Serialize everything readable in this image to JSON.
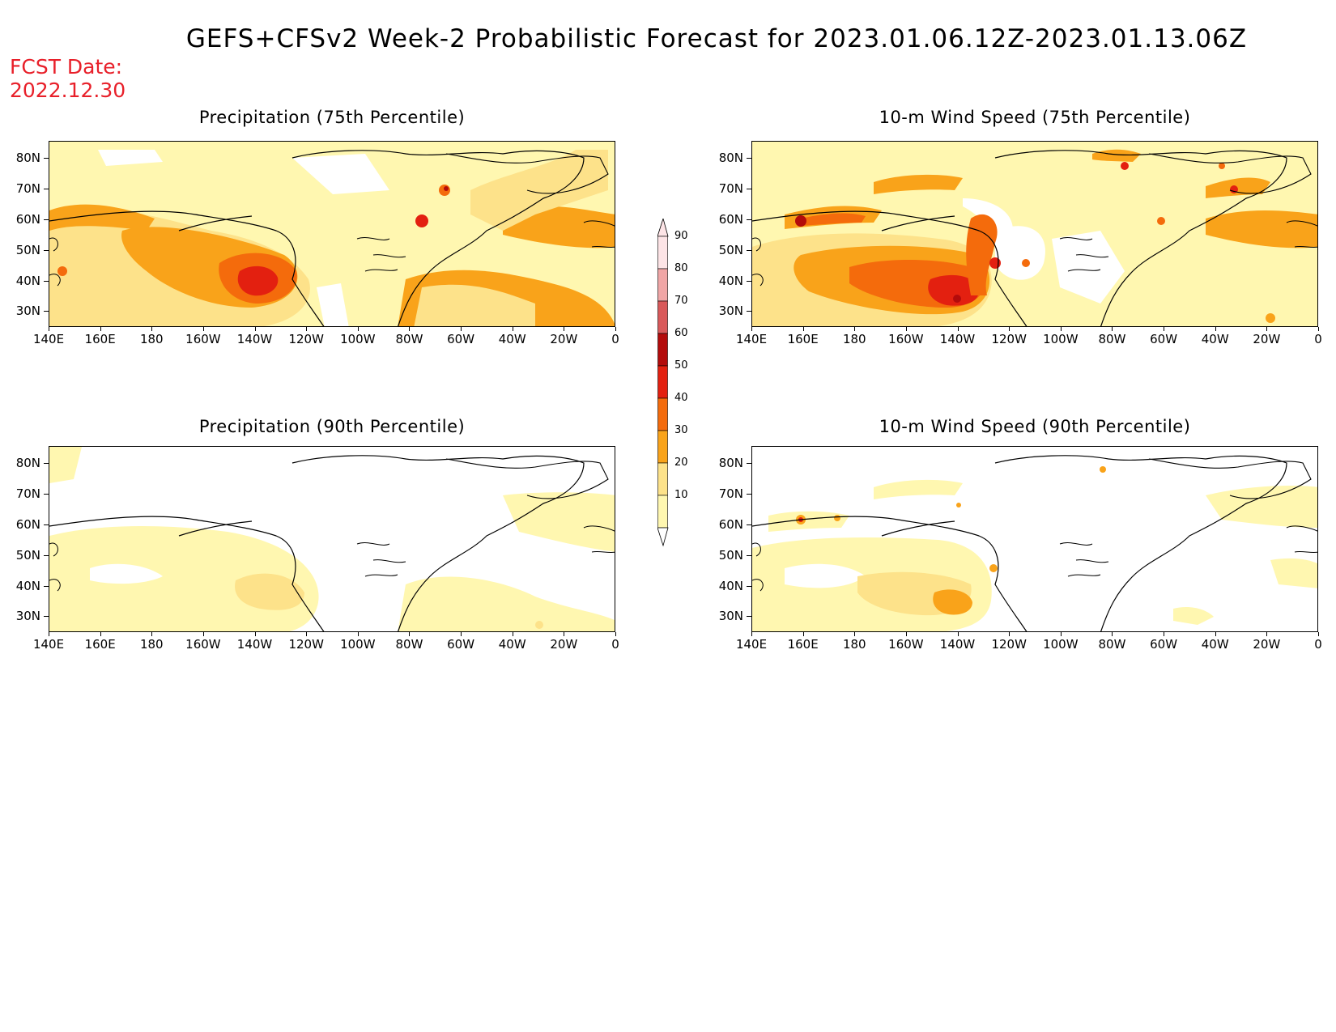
{
  "header": {
    "title": "GEFS+CFSv2 Week-2 Probabilistic Forecast for 2023.01.06.12Z-2023.01.13.06Z",
    "fcst_label": "FCST Date:",
    "fcst_date": "2022.12.30"
  },
  "axes": {
    "lat_labels": [
      "80N",
      "70N",
      "60N",
      "50N",
      "40N",
      "30N"
    ],
    "lon_labels": [
      "140E",
      "160E",
      "180",
      "160W",
      "140W",
      "120W",
      "100W",
      "80W",
      "60W",
      "40W",
      "20W",
      "0"
    ]
  },
  "panels": [
    {
      "id": "precip75",
      "title": "Precipitation (75th Percentile)"
    },
    {
      "id": "wind75",
      "title": "10-m Wind Speed (75th Percentile)"
    },
    {
      "id": "precip90",
      "title": "Precipitation (90th Percentile)"
    },
    {
      "id": "wind90",
      "title": "10-m Wind Speed (90th Percentile)"
    }
  ],
  "colorbar": {
    "levels": [
      "10",
      "20",
      "30",
      "40",
      "50",
      "60",
      "70",
      "80",
      "90"
    ],
    "colors": [
      "#fff7b0",
      "#fde28a",
      "#f9a31a",
      "#f46b0c",
      "#e32010",
      "#b30b0b",
      "#d9595a",
      "#f0a6a6",
      "#fde4e6"
    ]
  }
}
